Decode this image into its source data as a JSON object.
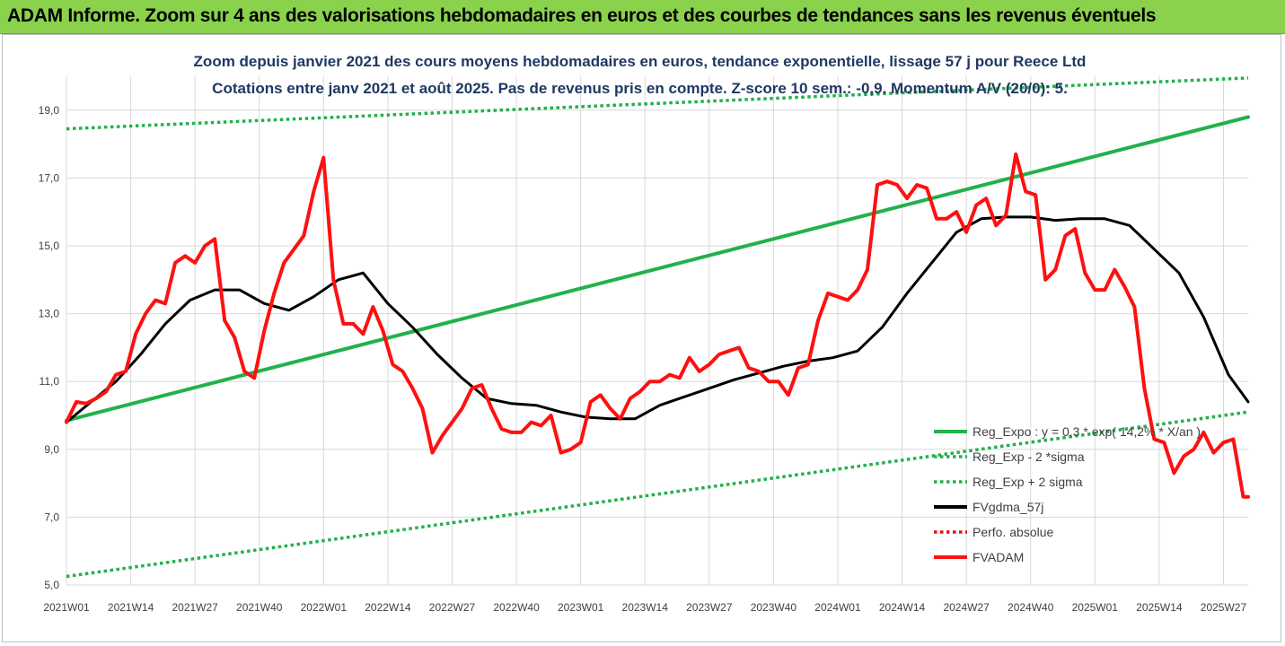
{
  "banner": {
    "title": "ADAM Informe. Zoom sur 4 ans des valorisations hebdomadaires en euros et des courbes de tendances sans les revenus éventuels"
  },
  "chart_data": {
    "type": "line",
    "title": "Zoom depuis janvier 2021 des cours moyens hebdomadaires en euros, tendance exponentielle, lissage 57 j pour Reece Ltd",
    "subtitle": "Cotations entre janv 2021 et août 2025. Pas de revenus pris en compte. Z-score 10 sem.: -0,9. Momentum A/V (20/0): 5.",
    "xlabel": "",
    "ylabel": "",
    "ylim": [
      5.0,
      20.0
    ],
    "y_ticks": [
      "5,0",
      "7,0",
      "9,0",
      "11,0",
      "13,0",
      "15,0",
      "17,0",
      "19,0"
    ],
    "x_ticks": [
      "2021W01",
      "2021W14",
      "2021W27",
      "2021W40",
      "2022W01",
      "2022W14",
      "2022W27",
      "2022W40",
      "2023W01",
      "2023W14",
      "2023W27",
      "2023W40",
      "2024W01",
      "2024W14",
      "2024W27",
      "2024W40",
      "2025W01",
      "2025W14",
      "2025W27"
    ],
    "week_index_of_ticks": [
      0,
      13,
      26,
      39,
      52,
      65,
      78,
      91,
      104,
      117,
      130,
      143,
      156,
      169,
      182,
      195,
      208,
      221,
      234
    ],
    "grid": true,
    "legend_position": "bottom-right",
    "series": [
      {
        "name": "Reg_Expo : y = 0,3 * exp( 14,2% * X/an )",
        "color": "#22b14c",
        "style": "solid",
        "x": [
          0,
          239
        ],
        "y": [
          9.85,
          18.8
        ]
      },
      {
        "name": "Reg_Exp - 2 *sigma",
        "color": "#22b14c",
        "style": "dotted",
        "x": [
          0,
          239
        ],
        "y": [
          5.25,
          10.1
        ]
      },
      {
        "name": "Reg_Exp + 2 sigma",
        "color": "#22b14c",
        "style": "dotted",
        "x": [
          0,
          239
        ],
        "y": [
          18.45,
          19.95
        ]
      },
      {
        "name": "FVgdma_57j",
        "color": "#000000",
        "style": "solid",
        "x": [
          0,
          5,
          10,
          15,
          20,
          25,
          30,
          35,
          40,
          45,
          50,
          55,
          60,
          65,
          70,
          75,
          80,
          85,
          90,
          95,
          100,
          105,
          110,
          115,
          120,
          125,
          130,
          135,
          140,
          145,
          150,
          155,
          160,
          165,
          170,
          175,
          180,
          185,
          190,
          195,
          200,
          205,
          210,
          215,
          220,
          225,
          230,
          235,
          239
        ],
        "y": [
          9.8,
          10.4,
          11.0,
          11.8,
          12.7,
          13.4,
          13.7,
          13.7,
          13.3,
          13.1,
          13.5,
          14.0,
          14.2,
          13.3,
          12.6,
          11.8,
          11.1,
          10.5,
          10.35,
          10.3,
          10.1,
          9.95,
          9.9,
          9.9,
          10.3,
          10.55,
          10.8,
          11.05,
          11.25,
          11.45,
          11.6,
          11.7,
          11.9,
          12.6,
          13.6,
          14.5,
          15.4,
          15.8,
          15.85,
          15.85,
          15.75,
          15.8,
          15.8,
          15.6,
          14.9,
          14.2,
          12.9,
          11.2,
          10.4
        ]
      },
      {
        "name": "Perfo. absolue",
        "color": "#e81010",
        "style": "dotted",
        "x": [],
        "y": []
      },
      {
        "name": "FVADAM",
        "color": "#ff1010",
        "style": "solid",
        "x": [
          0,
          2,
          4,
          6,
          8,
          10,
          12,
          14,
          16,
          18,
          20,
          22,
          24,
          26,
          28,
          30,
          32,
          34,
          36,
          38,
          40,
          42,
          44,
          46,
          48,
          50,
          52,
          54,
          56,
          58,
          60,
          62,
          64,
          66,
          68,
          70,
          72,
          74,
          76,
          78,
          80,
          82,
          84,
          86,
          88,
          90,
          92,
          94,
          96,
          98,
          100,
          102,
          104,
          106,
          108,
          110,
          112,
          114,
          116,
          118,
          120,
          122,
          124,
          126,
          128,
          130,
          132,
          134,
          136,
          138,
          140,
          142,
          144,
          146,
          148,
          150,
          152,
          154,
          156,
          158,
          160,
          162,
          164,
          166,
          168,
          170,
          172,
          174,
          176,
          178,
          180,
          182,
          184,
          186,
          188,
          190,
          192,
          194,
          196,
          198,
          200,
          202,
          204,
          206,
          208,
          210,
          212,
          214,
          216,
          218,
          220,
          222,
          224,
          226,
          228,
          230,
          232,
          234,
          236,
          238,
          239
        ],
        "y": [
          9.8,
          10.4,
          10.35,
          10.5,
          10.7,
          11.2,
          11.3,
          12.4,
          13.0,
          13.4,
          13.3,
          14.5,
          14.7,
          14.5,
          15.0,
          15.2,
          12.8,
          12.3,
          11.3,
          11.1,
          12.5,
          13.6,
          14.5,
          14.9,
          15.3,
          16.6,
          17.6,
          14.0,
          12.7,
          12.7,
          12.4,
          13.2,
          12.5,
          11.5,
          11.3,
          10.8,
          10.2,
          8.9,
          9.4,
          9.8,
          10.2,
          10.8,
          10.9,
          10.2,
          9.6,
          9.5,
          9.5,
          9.8,
          9.7,
          10.0,
          8.9,
          9.0,
          9.2,
          10.4,
          10.6,
          10.2,
          9.9,
          10.5,
          10.7,
          11.0,
          11.0,
          11.2,
          11.1,
          11.7,
          11.3,
          11.5,
          11.8,
          11.9,
          12.0,
          11.4,
          11.3,
          11.0,
          11.0,
          10.6,
          11.4,
          11.5,
          12.8,
          13.6,
          13.5,
          13.4,
          13.7,
          14.3,
          16.8,
          16.9,
          16.8,
          16.4,
          16.8,
          16.7,
          15.8,
          15.8,
          16.0,
          15.4,
          16.2,
          16.4,
          15.6,
          15.9,
          17.7,
          16.6,
          16.5,
          14.0,
          14.3,
          15.3,
          15.5,
          14.2,
          13.7,
          13.7,
          14.3,
          13.8,
          13.2,
          10.8,
          9.3,
          9.2,
          8.3,
          8.8,
          9.0,
          9.5,
          8.9,
          9.2,
          9.3,
          7.6,
          7.6
        ]
      }
    ]
  }
}
